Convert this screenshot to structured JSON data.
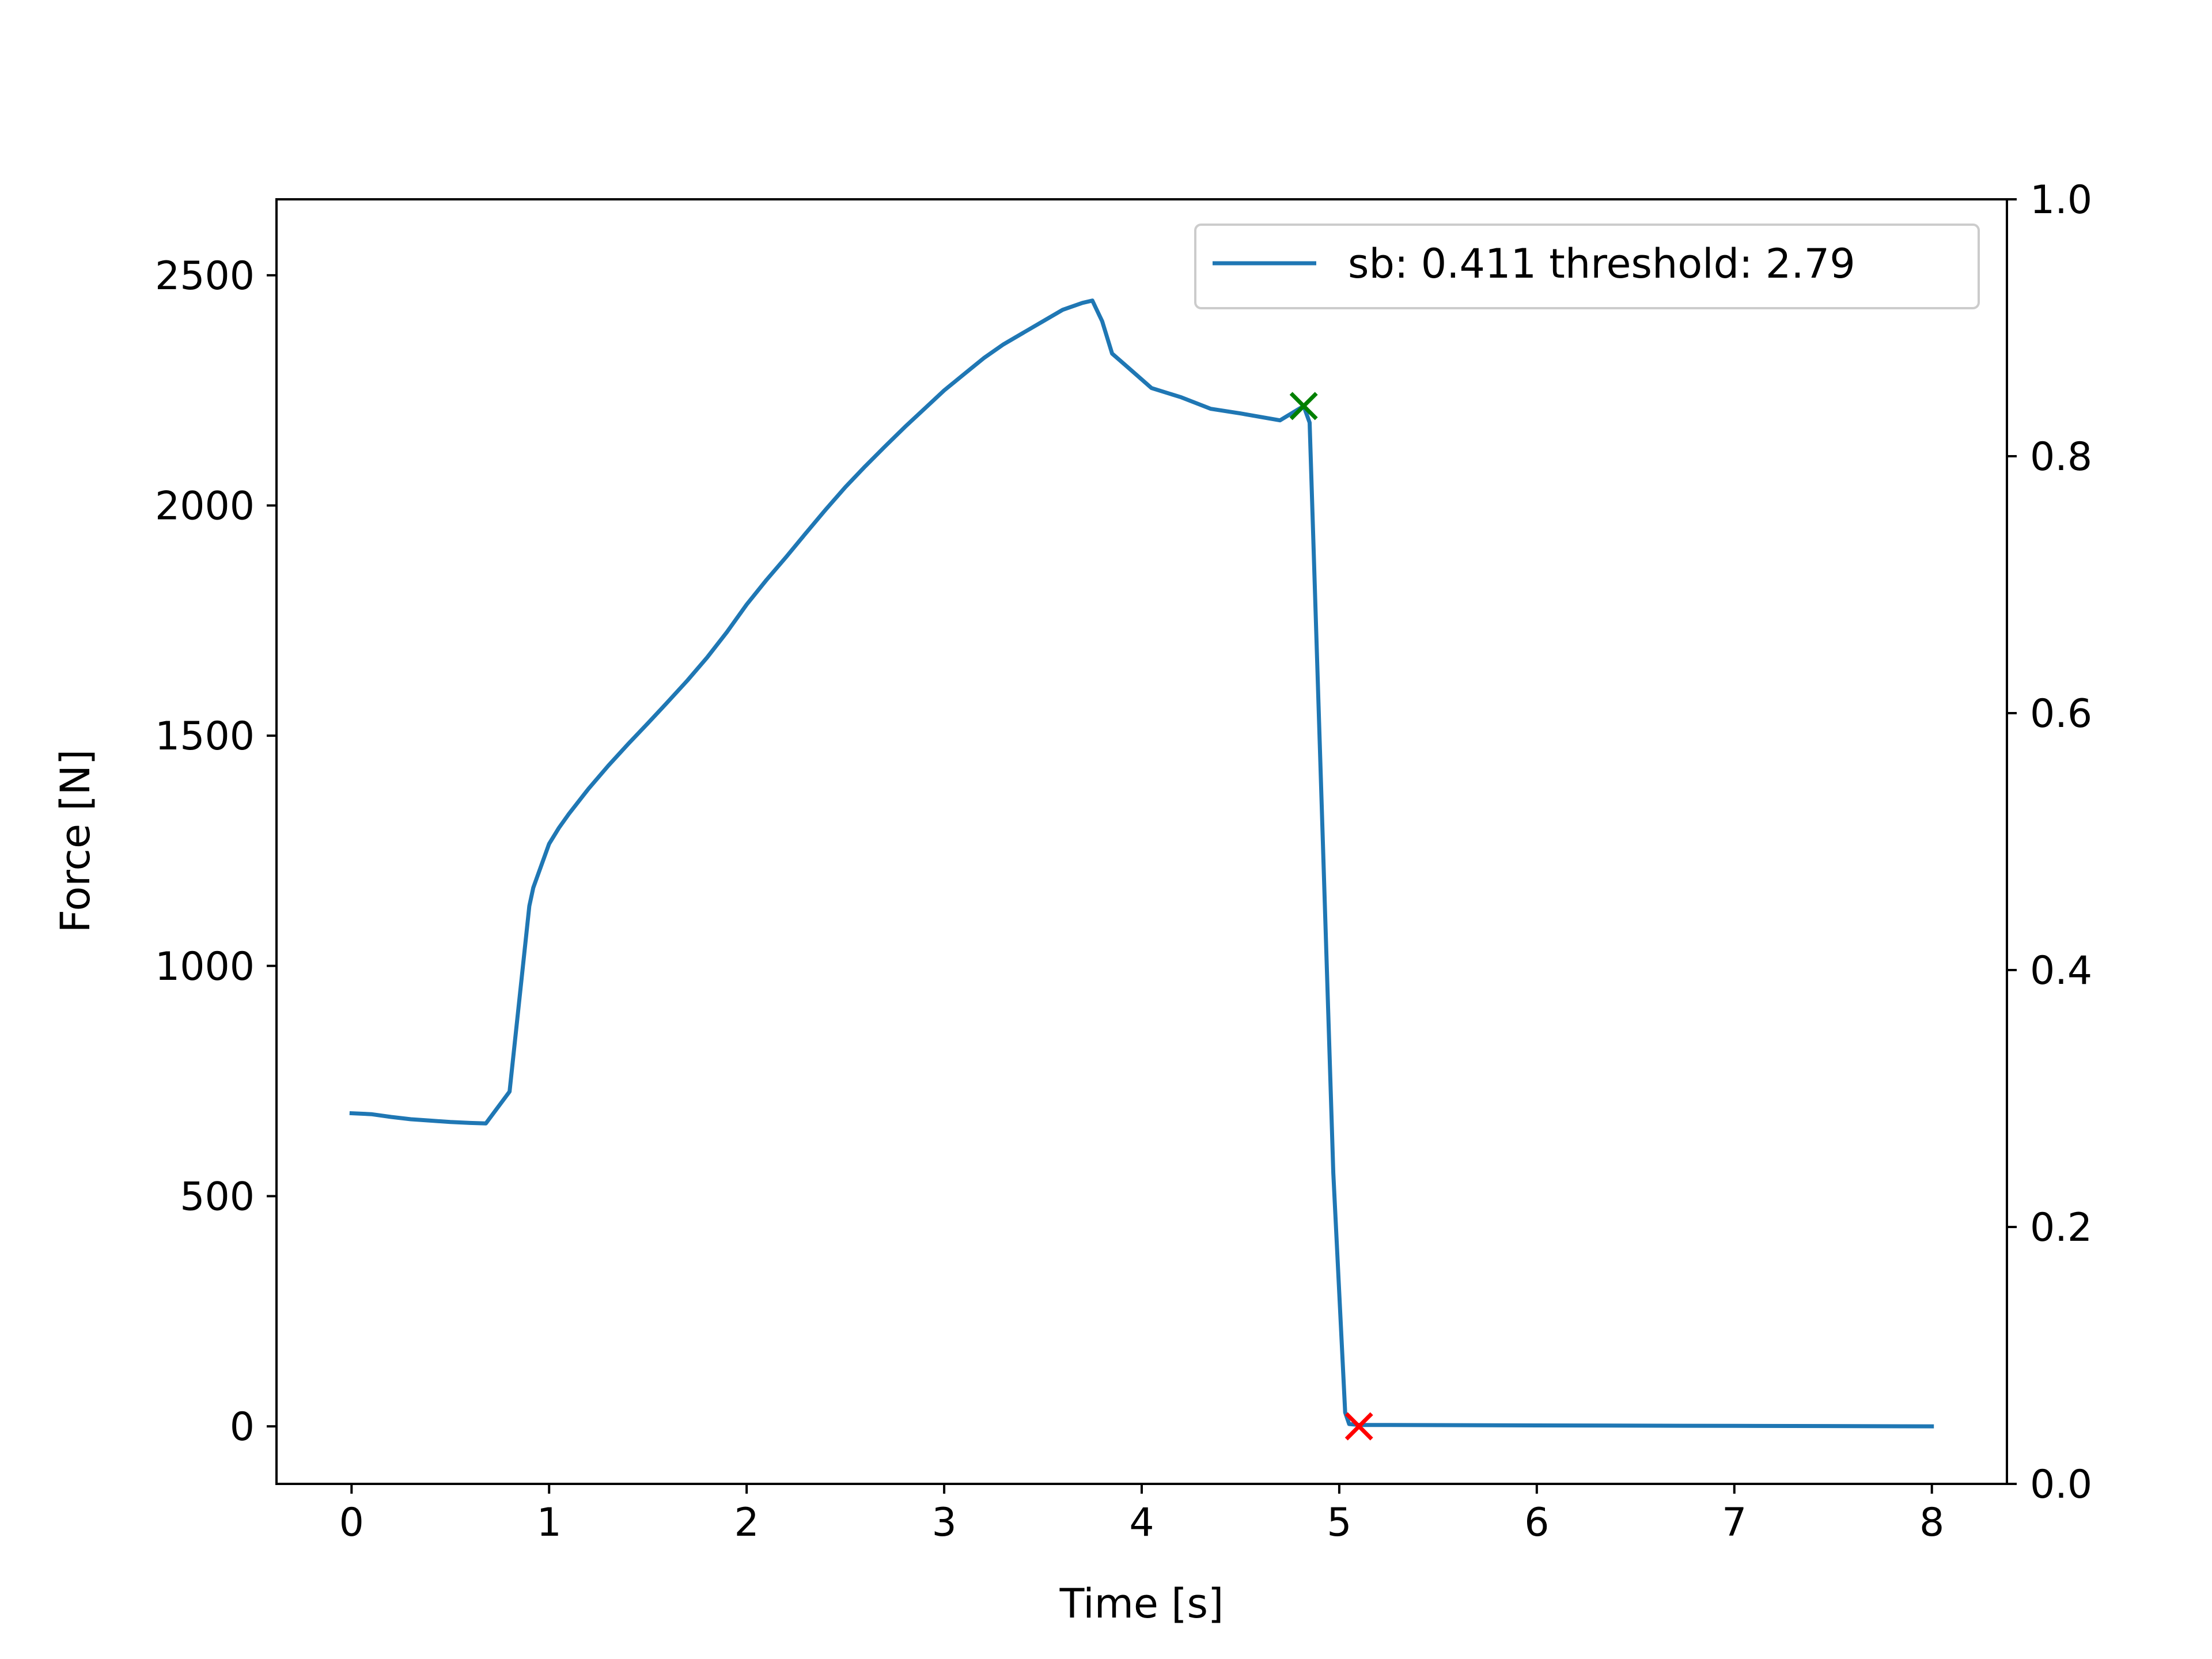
{
  "chart_data": {
    "type": "line",
    "xlabel": "Time [s]",
    "ylabel": "Force [N]",
    "xlim": [
      -0.38,
      8.38
    ],
    "ylim": [
      -125,
      2665
    ],
    "y2lim": [
      0.0,
      1.0
    ],
    "xticks": [
      "0",
      "1",
      "2",
      "3",
      "4",
      "5",
      "6",
      "7",
      "8"
    ],
    "yticks": [
      "0",
      "500",
      "1000",
      "1500",
      "2000",
      "2500"
    ],
    "y2ticks": [
      "0.0",
      "0.2",
      "0.4",
      "0.6",
      "0.8",
      "1.0"
    ],
    "grid": false,
    "legend_position": "top-right",
    "series": [
      {
        "name": "sb: 0.411 threshold: 2.79",
        "color": "#1f77b4",
        "x": [
          0.0,
          0.1,
          0.2,
          0.3,
          0.4,
          0.5,
          0.6,
          0.68,
          0.8,
          0.9,
          0.92,
          1.0,
          1.05,
          1.1,
          1.2,
          1.3,
          1.4,
          1.5,
          1.6,
          1.7,
          1.8,
          1.9,
          2.0,
          2.1,
          2.2,
          2.3,
          2.4,
          2.5,
          2.6,
          2.7,
          2.8,
          2.9,
          3.0,
          3.1,
          3.2,
          3.3,
          3.4,
          3.5,
          3.6,
          3.7,
          3.75,
          3.8,
          3.85,
          3.93,
          4.05,
          4.2,
          4.35,
          4.5,
          4.7,
          4.82,
          4.85,
          4.97,
          5.03,
          5.05,
          5.1,
          5.2,
          6.0,
          7.0,
          8.0
        ],
        "y": [
          680,
          678,
          672,
          667,
          664,
          661,
          659,
          658,
          727,
          1130,
          1170,
          1265,
          1300,
          1330,
          1385,
          1435,
          1482,
          1527,
          1573,
          1620,
          1670,
          1725,
          1785,
          1838,
          1888,
          1940,
          1991,
          2040,
          2085,
          2128,
          2170,
          2210,
          2250,
          2285,
          2320,
          2350,
          2375,
          2400,
          2425,
          2440,
          2445,
          2400,
          2330,
          2300,
          2255,
          2235,
          2210,
          2200,
          2185,
          2216,
          2180,
          550,
          30,
          5,
          3,
          3,
          2,
          1,
          0
        ]
      }
    ],
    "markers": [
      {
        "x": 4.82,
        "y": 2216,
        "symbol": "x",
        "color": "#008000"
      },
      {
        "x": 5.1,
        "y": 0,
        "symbol": "x",
        "color": "#ff0000"
      }
    ]
  }
}
